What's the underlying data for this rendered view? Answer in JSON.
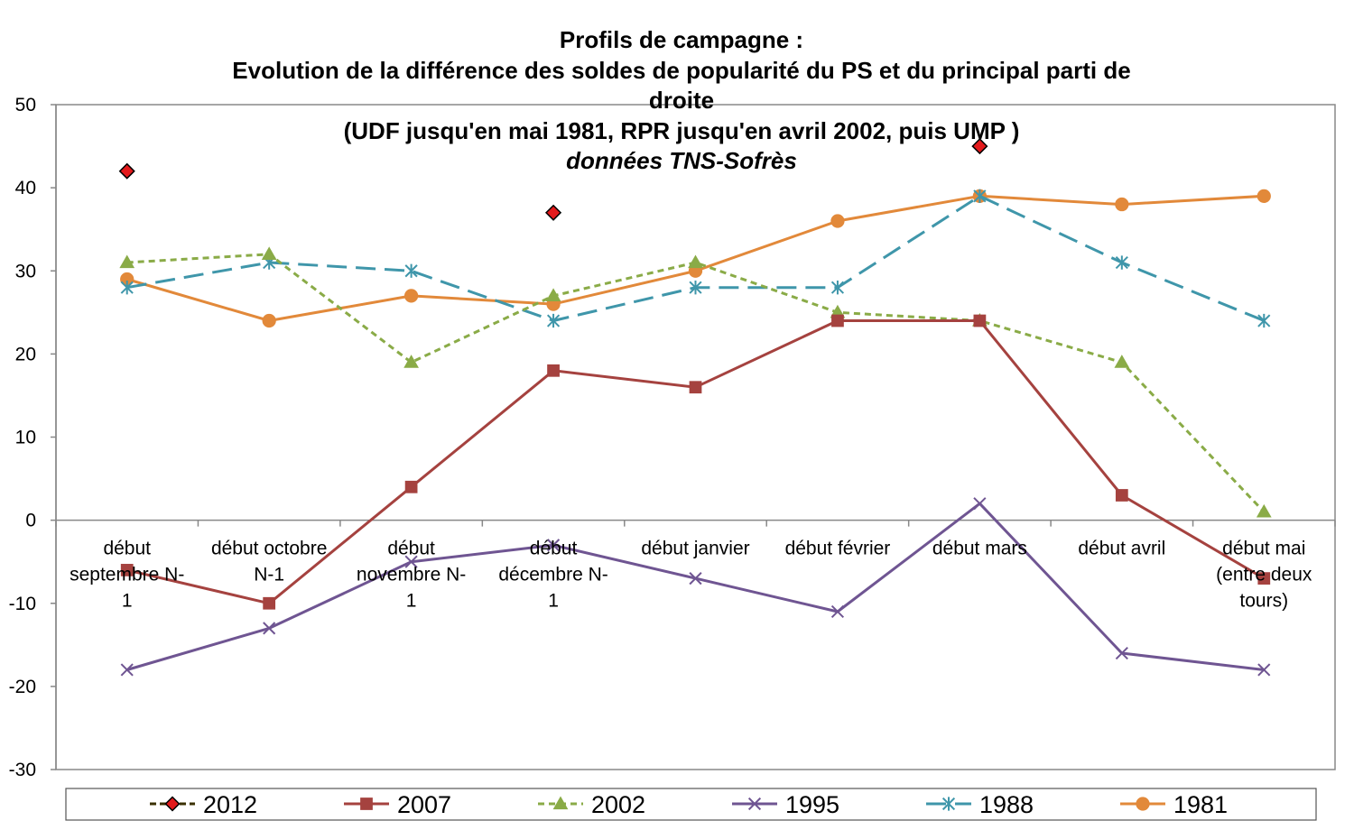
{
  "chart_data": {
    "type": "line",
    "title_lines": [
      "Profils de campagne :",
      "Evolution de la différence des soldes de popularité du PS et du principal  parti de",
      "droite",
      "(UDF jusqu'en mai 1981, RPR jusqu'en avril 2002, puis UMP )",
      "données TNS-Sofrès"
    ],
    "categories": [
      [
        "début",
        "septembre N-",
        "1"
      ],
      [
        "début octobre",
        "N-1"
      ],
      [
        "début",
        "novembre N-",
        "1"
      ],
      [
        "début",
        "décembre N-",
        "1"
      ],
      [
        "début janvier"
      ],
      [
        "début février"
      ],
      [
        "début mars"
      ],
      [
        "début avril"
      ],
      [
        "début mai",
        "(entre deux",
        "tours)"
      ]
    ],
    "ylim": [
      -30,
      50
    ],
    "yticks": [
      "50",
      "40",
      "30",
      "20",
      "10",
      "0",
      "-10",
      "-20",
      "-30"
    ],
    "ytick_values": [
      50,
      40,
      30,
      20,
      10,
      0,
      -10,
      -20,
      -30
    ],
    "series": [
      {
        "name": "2012",
        "color": "#e31a1c",
        "line": "none",
        "marker": "diamond",
        "values": [
          42,
          null,
          null,
          37,
          null,
          null,
          45,
          null,
          null
        ]
      },
      {
        "name": "2007",
        "color": "#a5423f",
        "line": "solid",
        "marker": "square",
        "values": [
          -6,
          -10,
          4,
          18,
          16,
          24,
          24,
          3,
          -7
        ]
      },
      {
        "name": "2002",
        "color": "#8aab47",
        "line": "dotted",
        "marker": "triangle",
        "values": [
          31,
          32,
          19,
          27,
          31,
          25,
          24,
          19,
          1
        ]
      },
      {
        "name": "1995",
        "color": "#6f5592",
        "line": "solid",
        "marker": "x",
        "values": [
          -18,
          -13,
          -5,
          -3,
          -7,
          -11,
          2,
          -16,
          -18
        ]
      },
      {
        "name": "1988",
        "color": "#3f96aa",
        "line": "dashed",
        "marker": "star",
        "values": [
          28,
          31,
          30,
          24,
          28,
          28,
          39,
          31,
          24
        ]
      },
      {
        "name": "1981",
        "color": "#e2893a",
        "line": "solid",
        "marker": "circle",
        "values": [
          29,
          24,
          27,
          26,
          30,
          36,
          39,
          38,
          39
        ]
      }
    ]
  }
}
